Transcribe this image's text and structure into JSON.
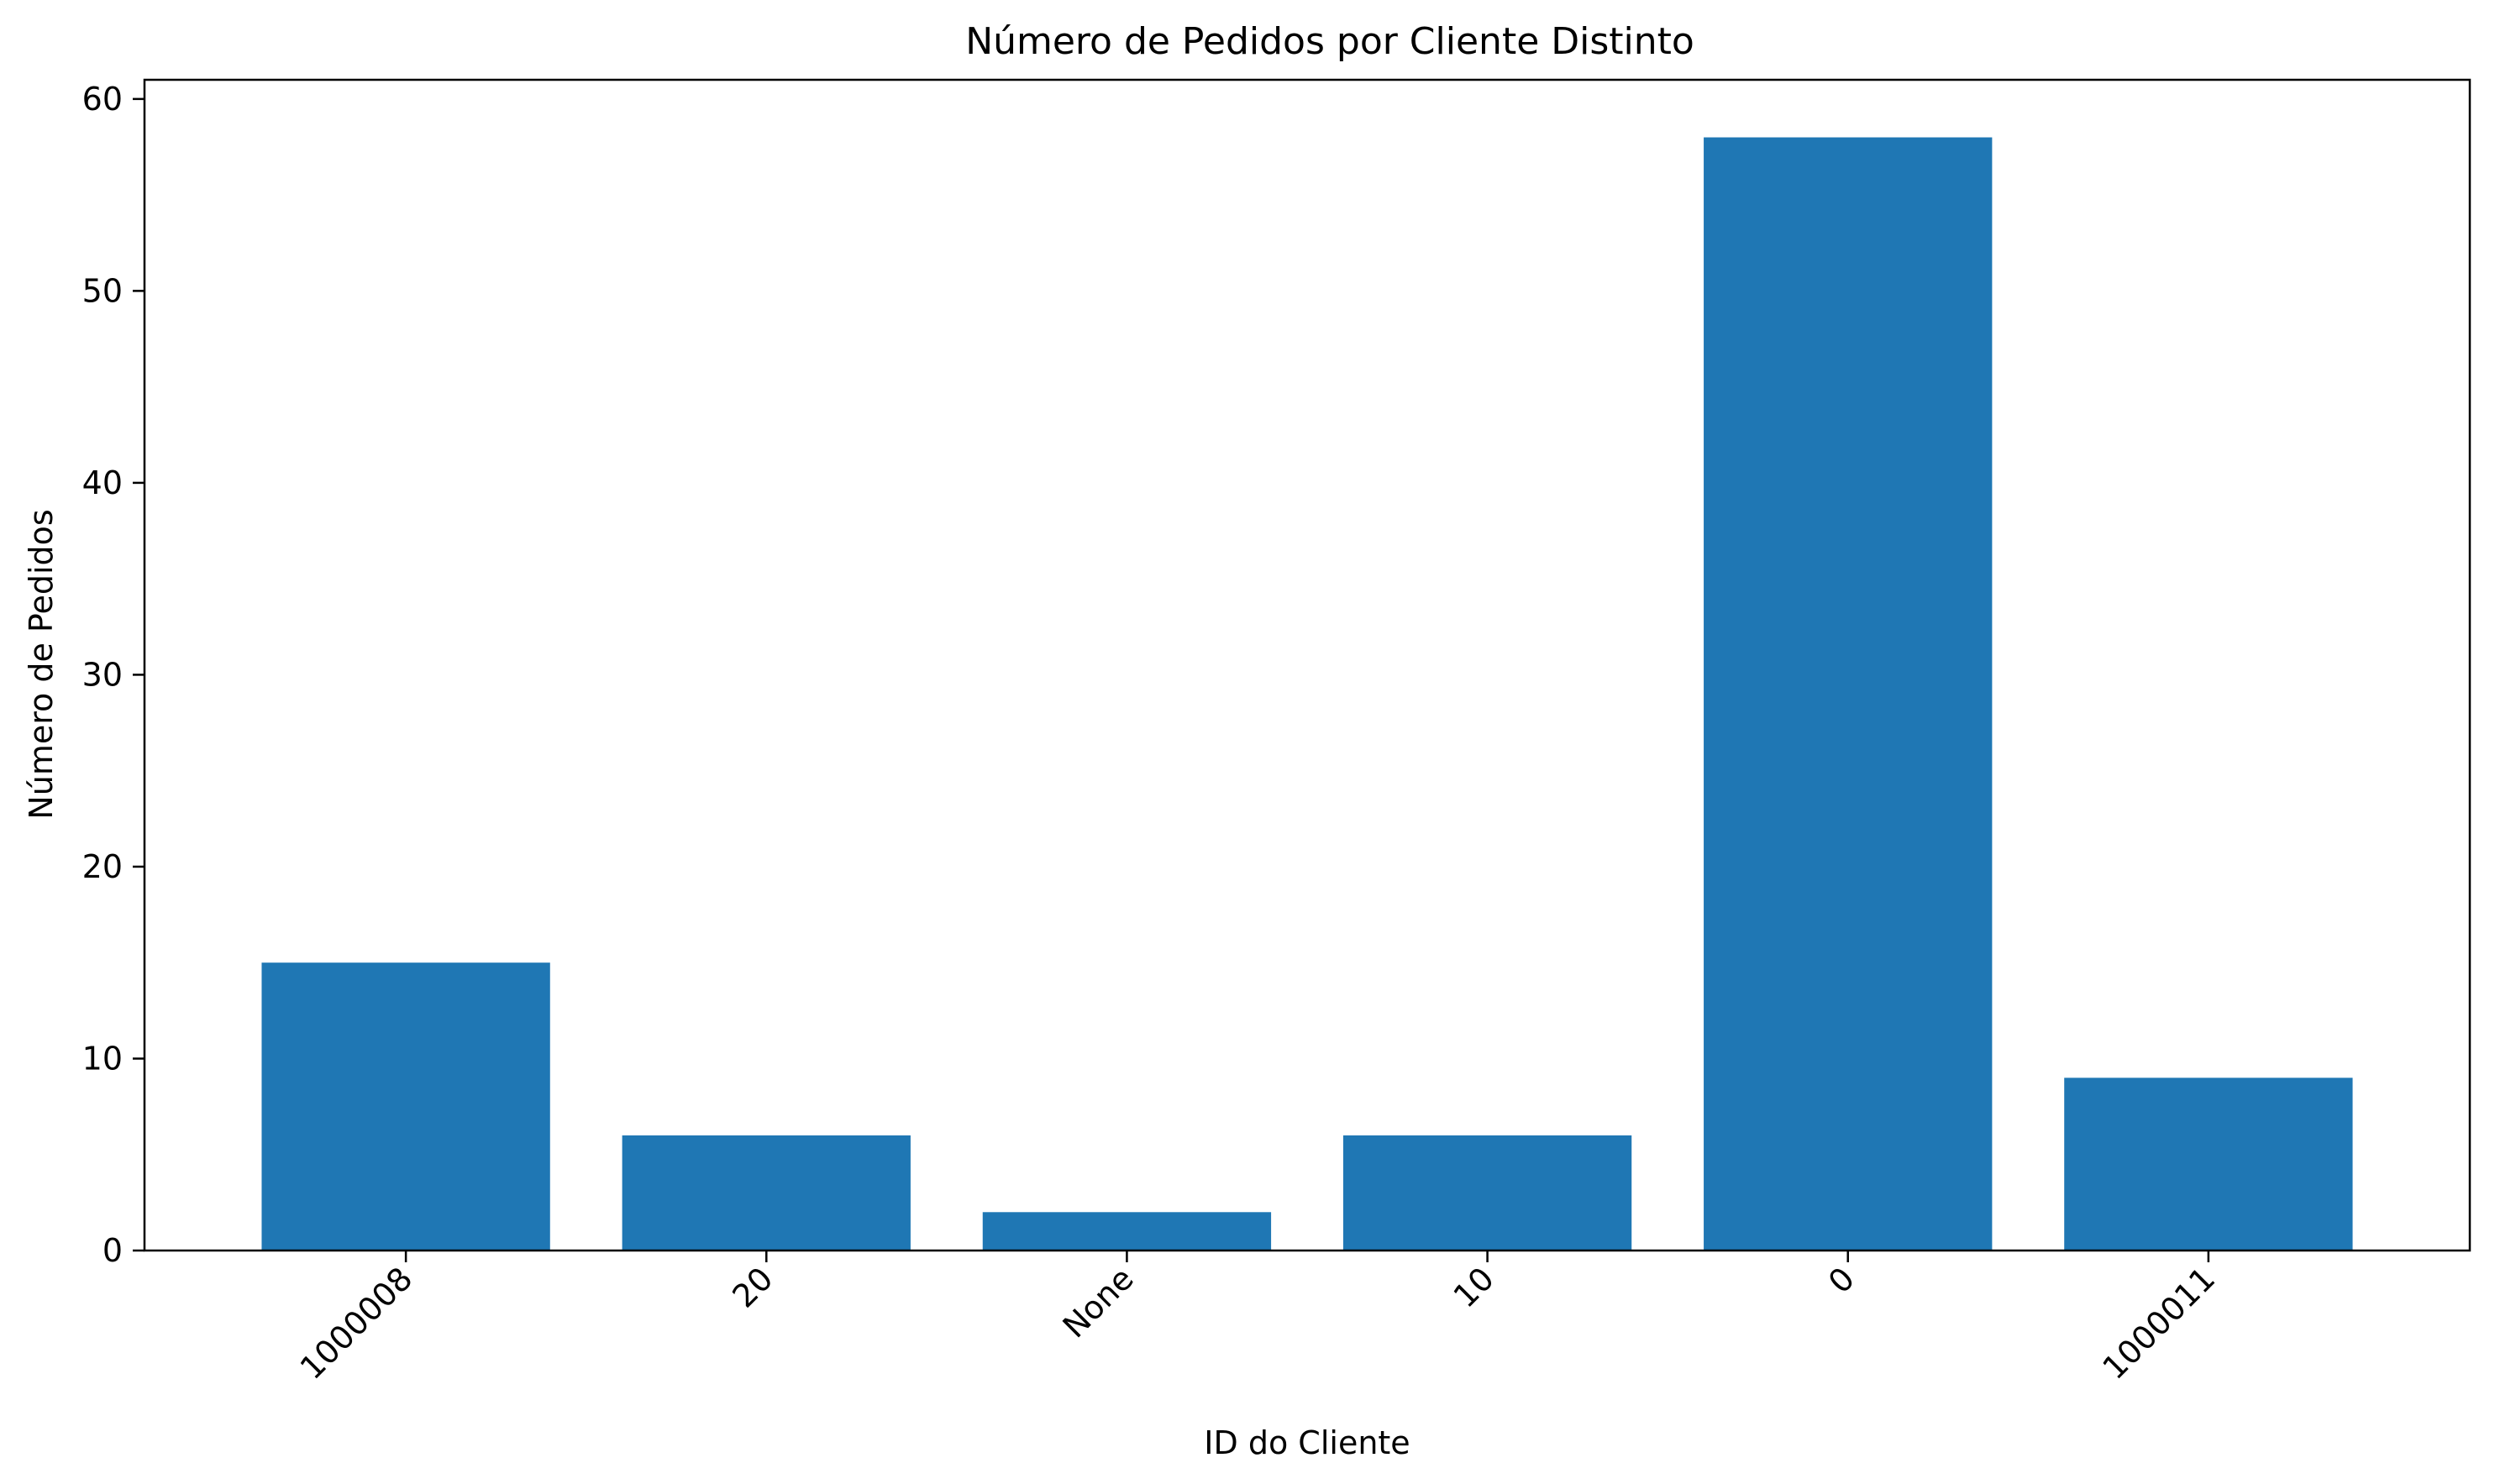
{
  "chart_data": {
    "type": "bar",
    "title": "Número de Pedidos por Cliente Distinto",
    "xlabel": "ID do Cliente",
    "ylabel": "Número de Pedidos",
    "categories": [
      "1000008",
      "20",
      "None",
      "10",
      "0",
      "1000011"
    ],
    "values": [
      15,
      6,
      2,
      6,
      58,
      9
    ],
    "ylim": [
      0,
      61
    ],
    "yticks": [
      0,
      10,
      20,
      30,
      40,
      50,
      60
    ],
    "ytick_labels": [
      "0",
      "10",
      "20",
      "30",
      "40",
      "50",
      "60"
    ],
    "grid": false,
    "legend": "none",
    "bar_color": "#1f77b4"
  }
}
